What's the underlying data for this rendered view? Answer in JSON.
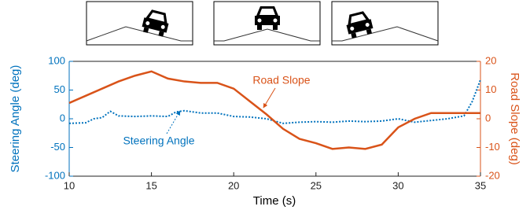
{
  "chart_data": {
    "type": "line",
    "xlabel": "Time (s)",
    "ylabel": "Steering Angle (deg)",
    "y2label": "Road Slope (deg)",
    "xlim": [
      10,
      35
    ],
    "xticks": [
      10,
      15,
      20,
      25,
      30,
      35
    ],
    "ylim": [
      -100,
      100
    ],
    "yticks": [
      -100,
      -50,
      0,
      50,
      100
    ],
    "y2lim": [
      -20,
      20
    ],
    "y2ticks": [
      -20,
      -10,
      0,
      10,
      20
    ],
    "series": [
      {
        "name": "Steering Angle",
        "color": "#0072BD",
        "dash": true,
        "x": [
          10,
          11,
          11.5,
          12,
          12.5,
          13,
          14,
          15,
          16,
          16.5,
          17,
          18,
          19,
          20,
          21,
          22,
          23,
          24,
          25,
          26,
          27,
          28,
          29,
          30,
          31,
          32,
          33,
          34,
          34.5,
          35
        ],
        "values": [
          -8,
          -7,
          0,
          2,
          13,
          5,
          4,
          5,
          4,
          12,
          14,
          10,
          10,
          4,
          3,
          0,
          -8,
          -6,
          -5,
          -6,
          -4,
          -5,
          -4,
          0,
          -6,
          -3,
          0,
          5,
          30,
          68
        ]
      },
      {
        "name": "Road Slope",
        "color": "#D95319",
        "axis": "y2",
        "x": [
          10,
          11,
          12,
          13,
          14,
          15,
          16,
          17,
          18,
          19,
          20,
          21,
          22,
          23,
          24,
          25,
          26,
          27,
          28,
          29,
          30,
          31,
          32,
          33,
          34,
          35
        ],
        "values": [
          5.5,
          8,
          10.5,
          13,
          15,
          16.5,
          14,
          13,
          12.5,
          12.5,
          10.5,
          6,
          1.5,
          -3.5,
          -7,
          -8.5,
          -10.5,
          -10,
          -10.5,
          -9,
          -3,
          0,
          2,
          2,
          2,
          2
        ]
      }
    ],
    "annotations": [
      {
        "text": "Road Slope"
      },
      {
        "text": "Steering Angle"
      }
    ]
  }
}
